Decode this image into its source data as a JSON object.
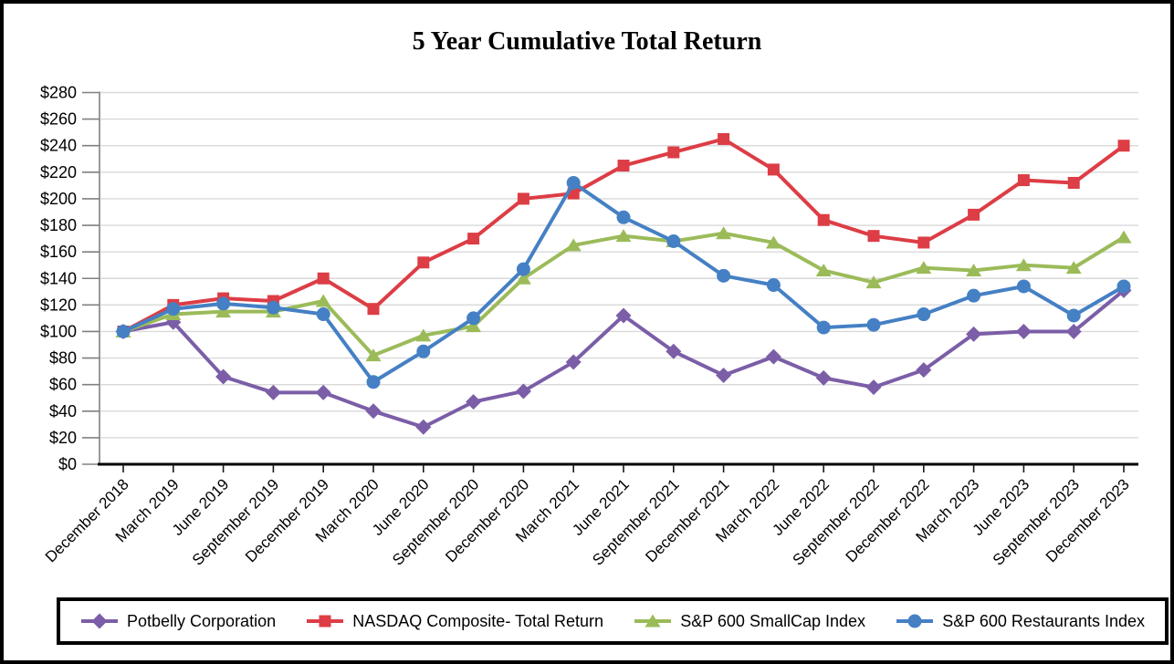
{
  "title": "5 Year Cumulative Total Return",
  "chart_data": {
    "type": "line",
    "title": "5 Year Cumulative Total Return",
    "xlabel": "",
    "ylabel": "",
    "y_tick_prefix": "$",
    "ylim": [
      0,
      280
    ],
    "ytick_step": 20,
    "grid": "horizontal",
    "legend_position": "bottom",
    "categories": [
      "December 2018",
      "March 2019",
      "June 2019",
      "September 2019",
      "December 2019",
      "March 2020",
      "June 2020",
      "September 2020",
      "December 2020",
      "March 2021",
      "June 2021",
      "September 2021",
      "December 2021",
      "March 2022",
      "June 2022",
      "September 2022",
      "December 2022",
      "March 2023",
      "June 2023",
      "September 2023",
      "December 2023"
    ],
    "series": [
      {
        "name": "Potbelly Corporation",
        "marker": "diamond",
        "color": "#7B5EA7",
        "values": [
          100,
          107,
          66,
          54,
          54,
          40,
          28,
          47,
          55,
          77,
          112,
          85,
          67,
          81,
          65,
          58,
          71,
          98,
          100,
          100,
          131
        ]
      },
      {
        "name": "NASDAQ Composite- Total Return",
        "marker": "square",
        "color": "#DD3D45",
        "values": [
          100,
          120,
          125,
          123,
          140,
          117,
          152,
          170,
          200,
          204,
          225,
          235,
          245,
          222,
          184,
          172,
          167,
          188,
          214,
          212,
          240
        ]
      },
      {
        "name": "S&P 600 SmallCap Index",
        "marker": "triangle",
        "color": "#9BBB59",
        "values": [
          100,
          113,
          115,
          115,
          123,
          82,
          97,
          104,
          140,
          165,
          172,
          168,
          174,
          167,
          146,
          137,
          148,
          146,
          150,
          148,
          171
        ]
      },
      {
        "name": "S&P 600 Restaurants Index",
        "marker": "circle",
        "color": "#4580C4",
        "values": [
          100,
          117,
          121,
          118,
          113,
          62,
          85,
          110,
          147,
          212,
          186,
          168,
          142,
          135,
          103,
          105,
          113,
          127,
          134,
          112,
          134
        ]
      }
    ]
  }
}
